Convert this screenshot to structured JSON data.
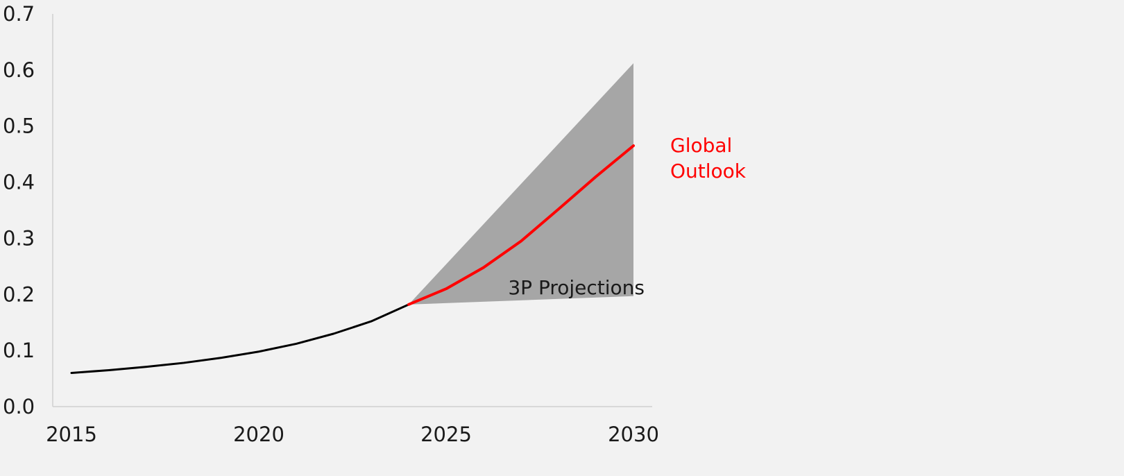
{
  "chart_data": {
    "type": "line",
    "title": "",
    "xlabel": "",
    "ylabel": "",
    "xlim": [
      2014.5,
      2030.5
    ],
    "ylim": [
      0,
      0.7
    ],
    "x_ticks": [
      2015,
      2020,
      2025,
      2030
    ],
    "x_tick_labels": [
      "2015",
      "2020",
      "2025",
      "2030"
    ],
    "y_ticks": [
      0,
      0.1,
      0.2,
      0.3,
      0.4,
      0.5,
      0.6,
      0.7
    ],
    "y_tick_labels": [
      "0.0",
      "0.1",
      "0.2",
      "0.3",
      "0.4",
      "0.5",
      "0.6",
      "0.7"
    ],
    "grid": false,
    "series": [
      {
        "name": "",
        "color": "#000000",
        "x": [
          2015,
          2016,
          2017,
          2018,
          2019,
          2020,
          2021,
          2022,
          2023,
          2024
        ],
        "y": [
          0.06,
          0.065,
          0.071,
          0.078,
          0.087,
          0.098,
          0.112,
          0.13,
          0.152,
          0.182
        ]
      },
      {
        "name": "Global Outlook",
        "color": "#ff0000",
        "x": [
          2024,
          2025,
          2026,
          2027,
          2028,
          2029,
          2030
        ],
        "y": [
          0.182,
          0.21,
          0.248,
          0.295,
          0.352,
          0.41,
          0.465
        ]
      }
    ],
    "band": {
      "name": "3P Projections",
      "color": "#a6a6a6",
      "x": [
        2024,
        2030
      ],
      "upper": [
        0.182,
        0.612
      ],
      "lower": [
        0.182,
        0.197
      ]
    },
    "annotations": [
      {
        "text": "Global",
        "color": "#ff0000"
      },
      {
        "text": "Outlook",
        "color": "#ff0000"
      },
      {
        "text": "3P Projections",
        "color": "#1a1a1a"
      }
    ]
  }
}
